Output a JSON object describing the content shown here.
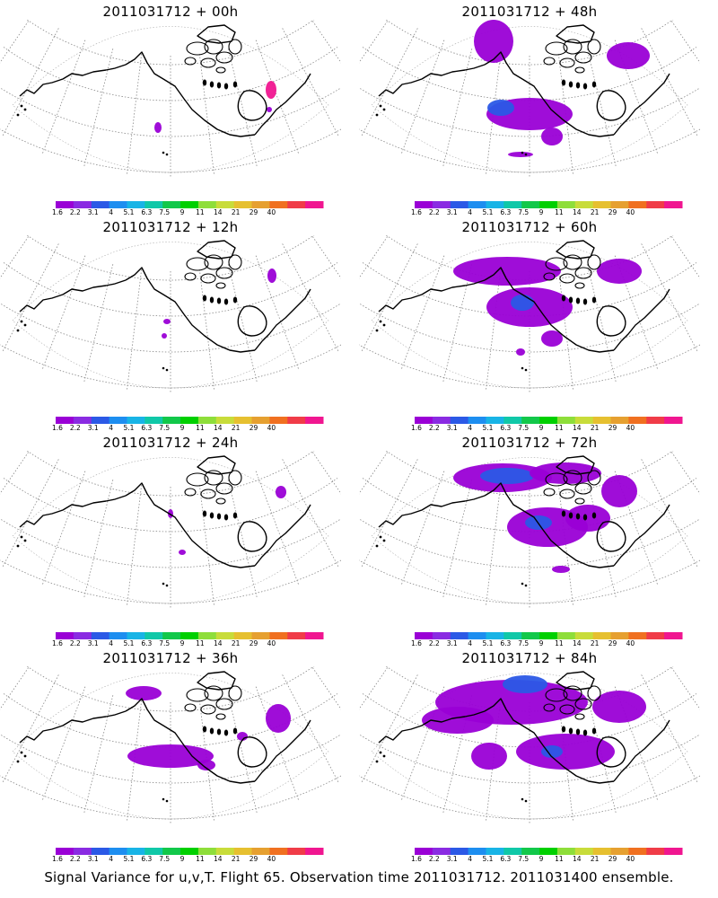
{
  "footer": "Signal Variance for u,v,T. Flight 65. Observation time 2011031712. 2011031400 ensemble.",
  "colorbar": {
    "labels": [
      "1.6",
      "2.2",
      "3.1",
      "4",
      "5.1",
      "6.3",
      "7.5",
      "9",
      "11",
      "14",
      "21",
      "29",
      "40"
    ],
    "colors": [
      "#9a00d6",
      "#8a2be2",
      "#2b59e6",
      "#1d8ef0",
      "#18b4e6",
      "#10c8a8",
      "#12c84a",
      "#00d000",
      "#8ede3a",
      "#c8dc3a",
      "#e6c030",
      "#e6a030",
      "#f07020",
      "#f03c48",
      "#f01690"
    ]
  },
  "panels": [
    {
      "title": "2011031712 + 00h",
      "blobs": [
        {
          "cx": 176,
          "cy": 120,
          "rx": 4,
          "ry": 6,
          "c": "#9a00d6"
        },
        {
          "cx": 302,
          "cy": 78,
          "rx": 6,
          "ry": 10,
          "c": "#f01690"
        },
        {
          "cx": 300,
          "cy": 100,
          "rx": 3,
          "ry": 3,
          "c": "#9a00d6"
        }
      ]
    },
    {
      "title": "2011031712 + 48h",
      "blobs": [
        {
          "cx": 150,
          "cy": 24,
          "rx": 22,
          "ry": 24,
          "c": "#9a00d6"
        },
        {
          "cx": 190,
          "cy": 105,
          "rx": 48,
          "ry": 18,
          "c": "#9a00d6"
        },
        {
          "cx": 158,
          "cy": 98,
          "rx": 15,
          "ry": 9,
          "c": "#2b59e6"
        },
        {
          "cx": 215,
          "cy": 130,
          "rx": 12,
          "ry": 10,
          "c": "#9a00d6"
        },
        {
          "cx": 300,
          "cy": 40,
          "rx": 24,
          "ry": 15,
          "c": "#9a00d6"
        },
        {
          "cx": 180,
          "cy": 150,
          "rx": 14,
          "ry": 3,
          "c": "#9a00d6"
        }
      ]
    },
    {
      "title": "2011031712 + 12h",
      "blobs": [
        {
          "cx": 303,
          "cy": 45,
          "rx": 5,
          "ry": 8,
          "c": "#9a00d6"
        },
        {
          "cx": 186,
          "cy": 96,
          "rx": 4,
          "ry": 3,
          "c": "#9a00d6"
        },
        {
          "cx": 183,
          "cy": 112,
          "rx": 3,
          "ry": 3,
          "c": "#9a00d6"
        }
      ]
    },
    {
      "title": "2011031712 + 60h",
      "blobs": [
        {
          "cx": 165,
          "cy": 40,
          "rx": 60,
          "ry": 16,
          "c": "#9a00d6"
        },
        {
          "cx": 290,
          "cy": 40,
          "rx": 25,
          "ry": 14,
          "c": "#9a00d6"
        },
        {
          "cx": 190,
          "cy": 80,
          "rx": 48,
          "ry": 22,
          "c": "#9a00d6"
        },
        {
          "cx": 182,
          "cy": 75,
          "rx": 13,
          "ry": 9,
          "c": "#2b59e6"
        },
        {
          "cx": 215,
          "cy": 115,
          "rx": 12,
          "ry": 9,
          "c": "#9a00d6"
        },
        {
          "cx": 180,
          "cy": 130,
          "rx": 5,
          "ry": 4,
          "c": "#9a00d6"
        }
      ]
    },
    {
      "title": "2011031712 + 24h",
      "blobs": [
        {
          "cx": 190,
          "cy": 70,
          "rx": 3,
          "ry": 5,
          "c": "#9a00d6"
        },
        {
          "cx": 313,
          "cy": 46,
          "rx": 6,
          "ry": 7,
          "c": "#9a00d6"
        },
        {
          "cx": 203,
          "cy": 113,
          "rx": 4,
          "ry": 3,
          "c": "#9a00d6"
        }
      ]
    },
    {
      "title": "2011031712 + 72h",
      "blobs": [
        {
          "cx": 160,
          "cy": 30,
          "rx": 55,
          "ry": 16,
          "c": "#9a00d6"
        },
        {
          "cx": 165,
          "cy": 28,
          "rx": 30,
          "ry": 9,
          "c": "#2b59e6"
        },
        {
          "cx": 230,
          "cy": 25,
          "rx": 40,
          "ry": 12,
          "c": "#9a00d6"
        },
        {
          "cx": 290,
          "cy": 45,
          "rx": 20,
          "ry": 18,
          "c": "#9a00d6"
        },
        {
          "cx": 210,
          "cy": 85,
          "rx": 45,
          "ry": 22,
          "c": "#9a00d6"
        },
        {
          "cx": 200,
          "cy": 80,
          "rx": 15,
          "ry": 8,
          "c": "#2b59e6"
        },
        {
          "cx": 255,
          "cy": 75,
          "rx": 25,
          "ry": 15,
          "c": "#9a00d6"
        },
        {
          "cx": 225,
          "cy": 132,
          "rx": 10,
          "ry": 4,
          "c": "#9a00d6"
        }
      ]
    },
    {
      "title": "2011031712 + 36h",
      "blobs": [
        {
          "cx": 160,
          "cy": 30,
          "rx": 20,
          "ry": 8,
          "c": "#9a00d6"
        },
        {
          "cx": 190,
          "cy": 100,
          "rx": 48,
          "ry": 13,
          "c": "#9a00d6"
        },
        {
          "cx": 230,
          "cy": 110,
          "rx": 10,
          "ry": 6,
          "c": "#9a00d6"
        },
        {
          "cx": 310,
          "cy": 58,
          "rx": 14,
          "ry": 16,
          "c": "#9a00d6"
        },
        {
          "cx": 270,
          "cy": 78,
          "rx": 6,
          "ry": 5,
          "c": "#9a00d6"
        }
      ]
    },
    {
      "title": "2011031712 + 84h",
      "blobs": [
        {
          "cx": 170,
          "cy": 40,
          "rx": 85,
          "ry": 25,
          "c": "#9a00d6"
        },
        {
          "cx": 185,
          "cy": 20,
          "rx": 25,
          "ry": 10,
          "c": "#2b59e6"
        },
        {
          "cx": 110,
          "cy": 60,
          "rx": 40,
          "ry": 15,
          "c": "#9a00d6"
        },
        {
          "cx": 230,
          "cy": 95,
          "rx": 55,
          "ry": 20,
          "c": "#9a00d6"
        },
        {
          "cx": 215,
          "cy": 95,
          "rx": 12,
          "ry": 7,
          "c": "#2b59e6"
        },
        {
          "cx": 290,
          "cy": 45,
          "rx": 30,
          "ry": 18,
          "c": "#9a00d6"
        },
        {
          "cx": 145,
          "cy": 100,
          "rx": 20,
          "ry": 15,
          "c": "#9a00d6"
        }
      ]
    }
  ]
}
